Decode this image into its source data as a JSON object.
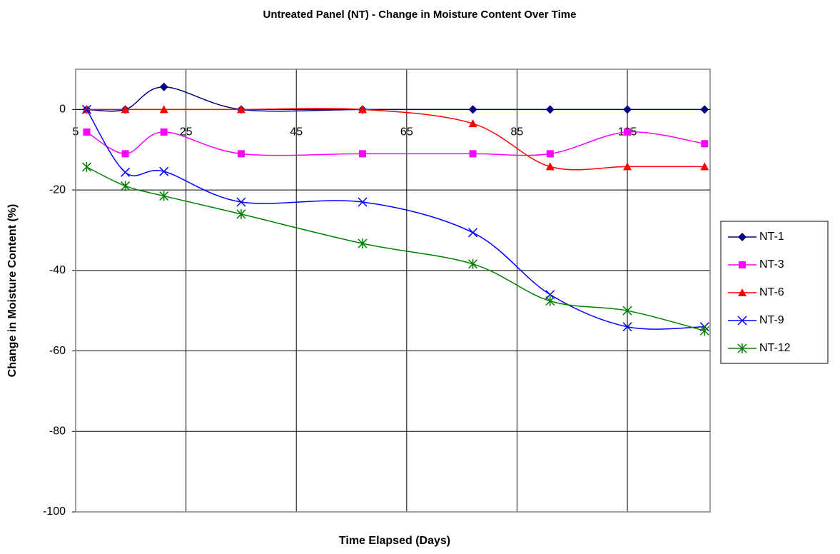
{
  "chart_data": {
    "type": "line",
    "title": "Untreated Panel (NT) - Change in Moisture Content Over Time",
    "x_label": "Time Elapsed (Days)",
    "y_label": "Change in Moisture Content (%)",
    "x": [
      7,
      14,
      21,
      35,
      57,
      77,
      91,
      105,
      119
    ],
    "series": [
      {
        "name": "NT-1",
        "color": "#000080",
        "marker": "diamond",
        "values": [
          0,
          0,
          5.6,
          0,
          0,
          0,
          0,
          0,
          0
        ]
      },
      {
        "name": "NT-3",
        "color": "#ff00ff",
        "marker": "square",
        "values": [
          -5.6,
          -11,
          -5.6,
          -11,
          -11,
          -11,
          -11,
          -5.6,
          -8.5
        ]
      },
      {
        "name": "NT-6",
        "color": "#ff0000",
        "marker": "triangle",
        "values": [
          0,
          0,
          0,
          0,
          0,
          -3.5,
          -14.2,
          -14.2,
          -14.2
        ]
      },
      {
        "name": "NT-9",
        "color": "#0000ff",
        "marker": "x",
        "values": [
          0,
          -15.6,
          -15.4,
          -23,
          -23,
          -30.6,
          -46,
          -54,
          -54
        ]
      },
      {
        "name": "NT-12",
        "color": "#008000",
        "marker": "star",
        "values": [
          -14.3,
          -19,
          -21.5,
          -26,
          -33.3,
          -38.4,
          -47.6,
          -50,
          -55
        ]
      }
    ],
    "xlim": [
      5,
      120
    ],
    "xticks": [
      5,
      25,
      45,
      65,
      85,
      105
    ],
    "ylim": [
      -100,
      10
    ],
    "yticks": [
      0,
      -20,
      -40,
      -60,
      -80,
      -100
    ],
    "grid": true,
    "legend": "right",
    "smooth": true
  }
}
